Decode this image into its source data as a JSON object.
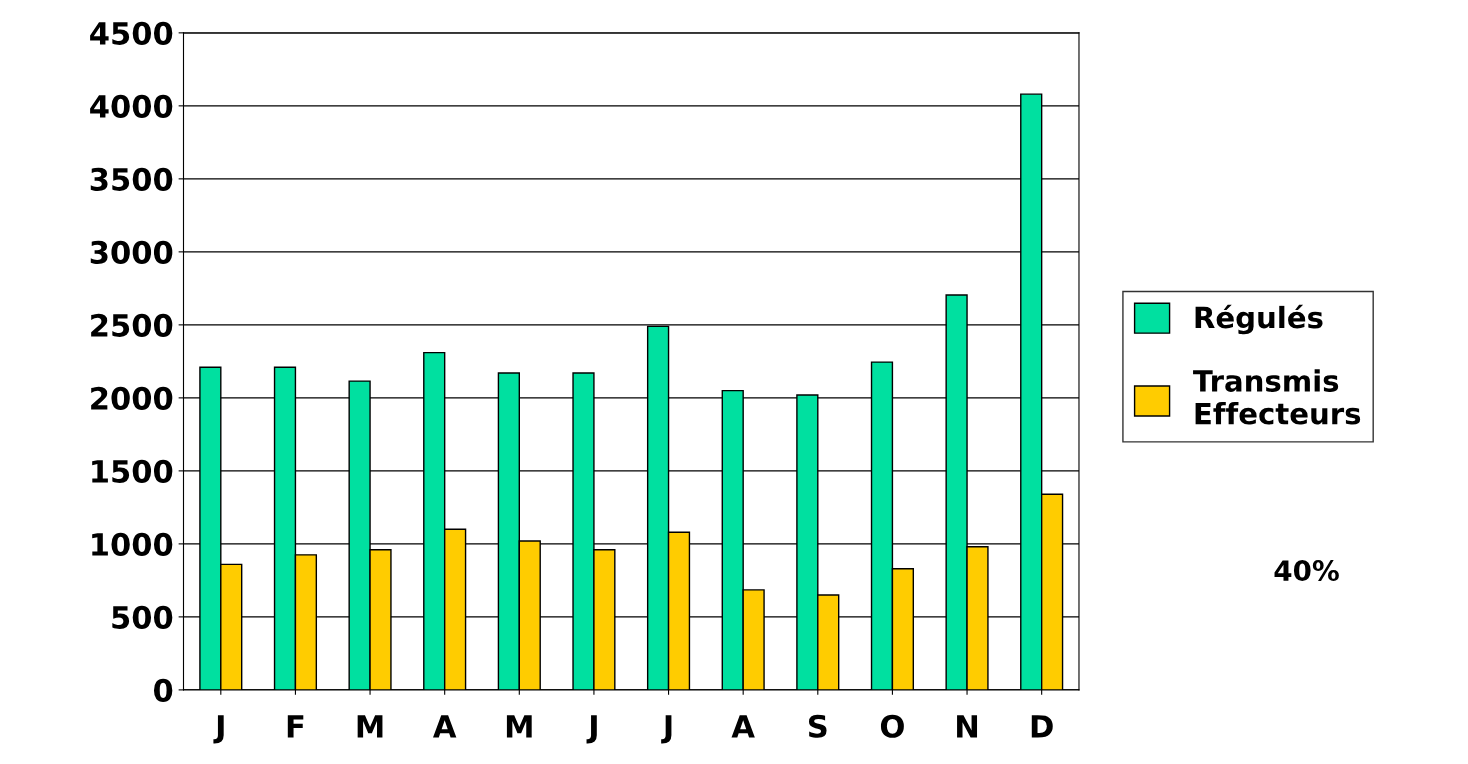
{
  "chart_data": {
    "type": "bar",
    "categories": [
      "J",
      "F",
      "M",
      "A",
      "M",
      "J",
      "J",
      "A",
      "S",
      "O",
      "N",
      "D"
    ],
    "series": [
      {
        "name": "Régulés",
        "color": "#00e0a0",
        "values": [
          2210,
          2210,
          2115,
          2310,
          2170,
          2170,
          2490,
          2050,
          2020,
          2245,
          2705,
          4080
        ]
      },
      {
        "name": "Transmis\nEffecteurs",
        "color": "#ffcc00",
        "values": [
          860,
          925,
          960,
          1100,
          1020,
          960,
          1080,
          685,
          650,
          830,
          980,
          1340
        ]
      }
    ],
    "ylim": [
      0,
      4500
    ],
    "yticks": [
      0,
      500,
      1000,
      1500,
      2000,
      2500,
      3000,
      3500,
      4000,
      4500
    ],
    "grid": "y",
    "legend": "right",
    "annotations": [
      "40%"
    ]
  }
}
